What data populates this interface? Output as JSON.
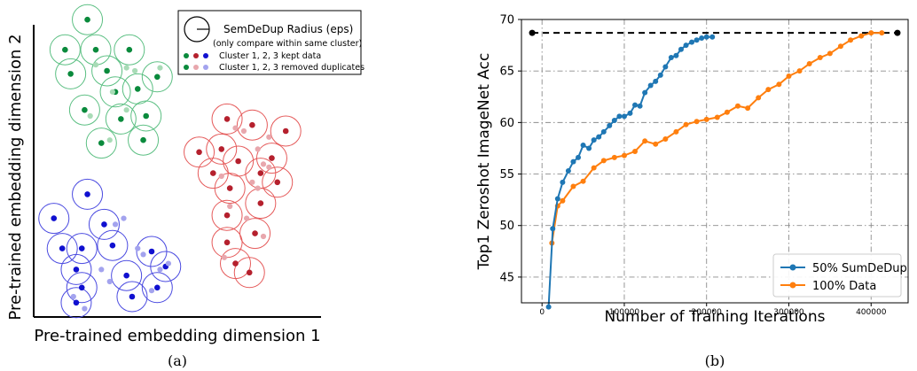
{
  "panel_a": {
    "caption": "(a)",
    "xlabel": "Pre-trained embedding dimension 1",
    "ylabel": "Pre-trained embedding dimension 2",
    "legend": {
      "radius_label": "SemDeDup Radius (eps)",
      "radius_note": "(only compare within same cluster)",
      "kept_label": "Cluster 1, 2, 3 kept data",
      "removed_label": "Cluster 1, 2, 3 removed duplicates"
    },
    "colors": {
      "green": "#0a8a3c",
      "green_light": "#a8dbb6",
      "green_ring": "#5bbf82",
      "red": "#b5202d",
      "red_light": "#e8a7ad",
      "red_ring": "#e55a5a",
      "blue": "#1010d0",
      "blue_light": "#a3a3ee",
      "blue_ring": "#4a4ae0"
    }
  },
  "panel_b": {
    "caption": "(b)",
    "colors": {
      "sumdedup": "#1f77b4",
      "data100": "#ff7f0e",
      "reference": "#000000"
    }
  },
  "chart_data": [
    {
      "type": "scatter",
      "title": "",
      "xlabel": "Pre-trained embedding dimension 1",
      "ylabel": "Pre-trained embedding dimension 2",
      "xlim": [
        0,
        100
      ],
      "ylim": [
        0,
        100
      ],
      "ticks_shown": false,
      "series": [
        {
          "name": "Cluster 1, 2, 3 kept data",
          "cluster": 1,
          "role": "kept",
          "points": [
            [
              17,
              97
            ],
            [
              9,
              87
            ],
            [
              20,
              87
            ],
            [
              24,
              80
            ],
            [
              32,
              87
            ],
            [
              11,
              79
            ],
            [
              35,
              74
            ],
            [
              42,
              78
            ],
            [
              27,
              73
            ],
            [
              16,
              67
            ],
            [
              29,
              64
            ],
            [
              38,
              65
            ],
            [
              22,
              56
            ],
            [
              37,
              57
            ]
          ]
        },
        {
          "name": "Cluster 1, 2, 3 removed duplicates",
          "cluster": 1,
          "role": "removed",
          "points": [
            [
              31,
              81
            ],
            [
              20,
              82
            ],
            [
              43,
              81
            ],
            [
              34,
              80
            ],
            [
              18,
              65
            ],
            [
              31,
              67
            ],
            [
              25,
              57
            ],
            [
              26,
              73
            ]
          ]
        },
        {
          "name": "Cluster 1, 2, 3 kept data",
          "cluster": 2,
          "role": "kept",
          "points": [
            [
              67,
              64
            ],
            [
              76,
              62
            ],
            [
              88,
              60
            ],
            [
              65,
              54
            ],
            [
              83,
              51
            ],
            [
              57,
              53
            ],
            [
              71,
              50
            ],
            [
              79,
              46
            ],
            [
              62,
              46
            ],
            [
              85,
              43
            ],
            [
              68,
              41
            ],
            [
              79,
              36
            ],
            [
              67,
              32
            ],
            [
              77,
              26
            ],
            [
              67,
              23
            ],
            [
              70,
              16
            ],
            [
              75,
              13
            ]
          ]
        },
        {
          "name": "Cluster 1, 2, 3 removed duplicates",
          "cluster": 2,
          "role": "removed",
          "points": [
            [
              70,
              61
            ],
            [
              73,
              60
            ],
            [
              78,
              54
            ],
            [
              80,
              49
            ],
            [
              82,
              48
            ],
            [
              76,
              43
            ],
            [
              78,
              41
            ],
            [
              65,
              45
            ],
            [
              68,
              35
            ],
            [
              74,
              31
            ],
            [
              80,
              25
            ],
            [
              66,
              18
            ],
            [
              82,
              58
            ]
          ]
        },
        {
          "name": "Cluster 1, 2, 3 kept data",
          "cluster": 3,
          "role": "kept",
          "points": [
            [
              17,
              39
            ],
            [
              5,
              31
            ],
            [
              23,
              29
            ],
            [
              8,
              21
            ],
            [
              15,
              21
            ],
            [
              26,
              22
            ],
            [
              40,
              20
            ],
            [
              31,
              12
            ],
            [
              13,
              14
            ],
            [
              45,
              15
            ],
            [
              15,
              8
            ],
            [
              33,
              5
            ],
            [
              42,
              8
            ],
            [
              13,
              3
            ]
          ]
        },
        {
          "name": "Cluster 1, 2, 3 removed duplicates",
          "cluster": 3,
          "role": "removed",
          "points": [
            [
              30,
              31
            ],
            [
              27,
              29
            ],
            [
              35,
              21
            ],
            [
              37,
              19
            ],
            [
              43,
              14
            ],
            [
              46,
              16
            ],
            [
              22,
              14
            ],
            [
              25,
              10
            ],
            [
              12,
              5
            ],
            [
              40,
              7
            ],
            [
              16,
              1
            ]
          ]
        }
      ]
    },
    {
      "type": "line",
      "title": "",
      "xlabel": "Number of Training Iterations",
      "ylabel": "Top1 Zeroshot ImageNet Acc",
      "xlim": [
        -25000,
        445000
      ],
      "ylim": [
        42.5,
        70
      ],
      "xticks": [
        0,
        100000,
        200000,
        300000,
        400000
      ],
      "yticks": [
        45,
        50,
        55,
        60,
        65,
        70
      ],
      "grid": true,
      "legend_position": "lower-right",
      "series": [
        {
          "name": "50% SumDeDup",
          "x": [
            8000,
            13000,
            19000,
            25000,
            32000,
            38000,
            44000,
            50000,
            57000,
            63000,
            69000,
            75000,
            82000,
            88000,
            94000,
            100000,
            107000,
            113000,
            119000,
            125000,
            132000,
            138000,
            144000,
            150000,
            157000,
            163000,
            169000,
            175000,
            182000,
            188000,
            194000,
            200000,
            207000
          ],
          "y": [
            42.1,
            49.7,
            52.6,
            54.2,
            55.3,
            56.2,
            56.6,
            57.8,
            57.5,
            58.3,
            58.6,
            59.1,
            59.7,
            60.2,
            60.6,
            60.6,
            60.9,
            61.7,
            61.6,
            62.9,
            63.6,
            64.0,
            64.6,
            65.4,
            66.3,
            66.5,
            67.1,
            67.5,
            67.8,
            68.0,
            68.2,
            68.3,
            68.3
          ]
        },
        {
          "name": "100% Data",
          "x": [
            12000,
            19000,
            25000,
            38000,
            50000,
            63000,
            75000,
            88000,
            100000,
            113000,
            125000,
            138000,
            150000,
            163000,
            175000,
            188000,
            200000,
            213000,
            225000,
            238000,
            250000,
            263000,
            275000,
            288000,
            300000,
            313000,
            325000,
            338000,
            350000,
            363000,
            375000,
            388000,
            400000,
            413000
          ],
          "y": [
            48.3,
            51.9,
            52.4,
            53.8,
            54.3,
            55.6,
            56.3,
            56.6,
            56.8,
            57.2,
            58.2,
            57.9,
            58.4,
            59.1,
            59.8,
            60.1,
            60.3,
            60.5,
            61.0,
            61.6,
            61.4,
            62.4,
            63.2,
            63.7,
            64.5,
            65.0,
            65.7,
            66.3,
            66.7,
            67.4,
            68.0,
            68.4,
            68.7,
            68.7
          ]
        },
        {
          "name": "",
          "style": "dashed",
          "x": [
            -12000,
            432000
          ],
          "y": [
            68.7,
            68.7
          ]
        }
      ]
    }
  ]
}
